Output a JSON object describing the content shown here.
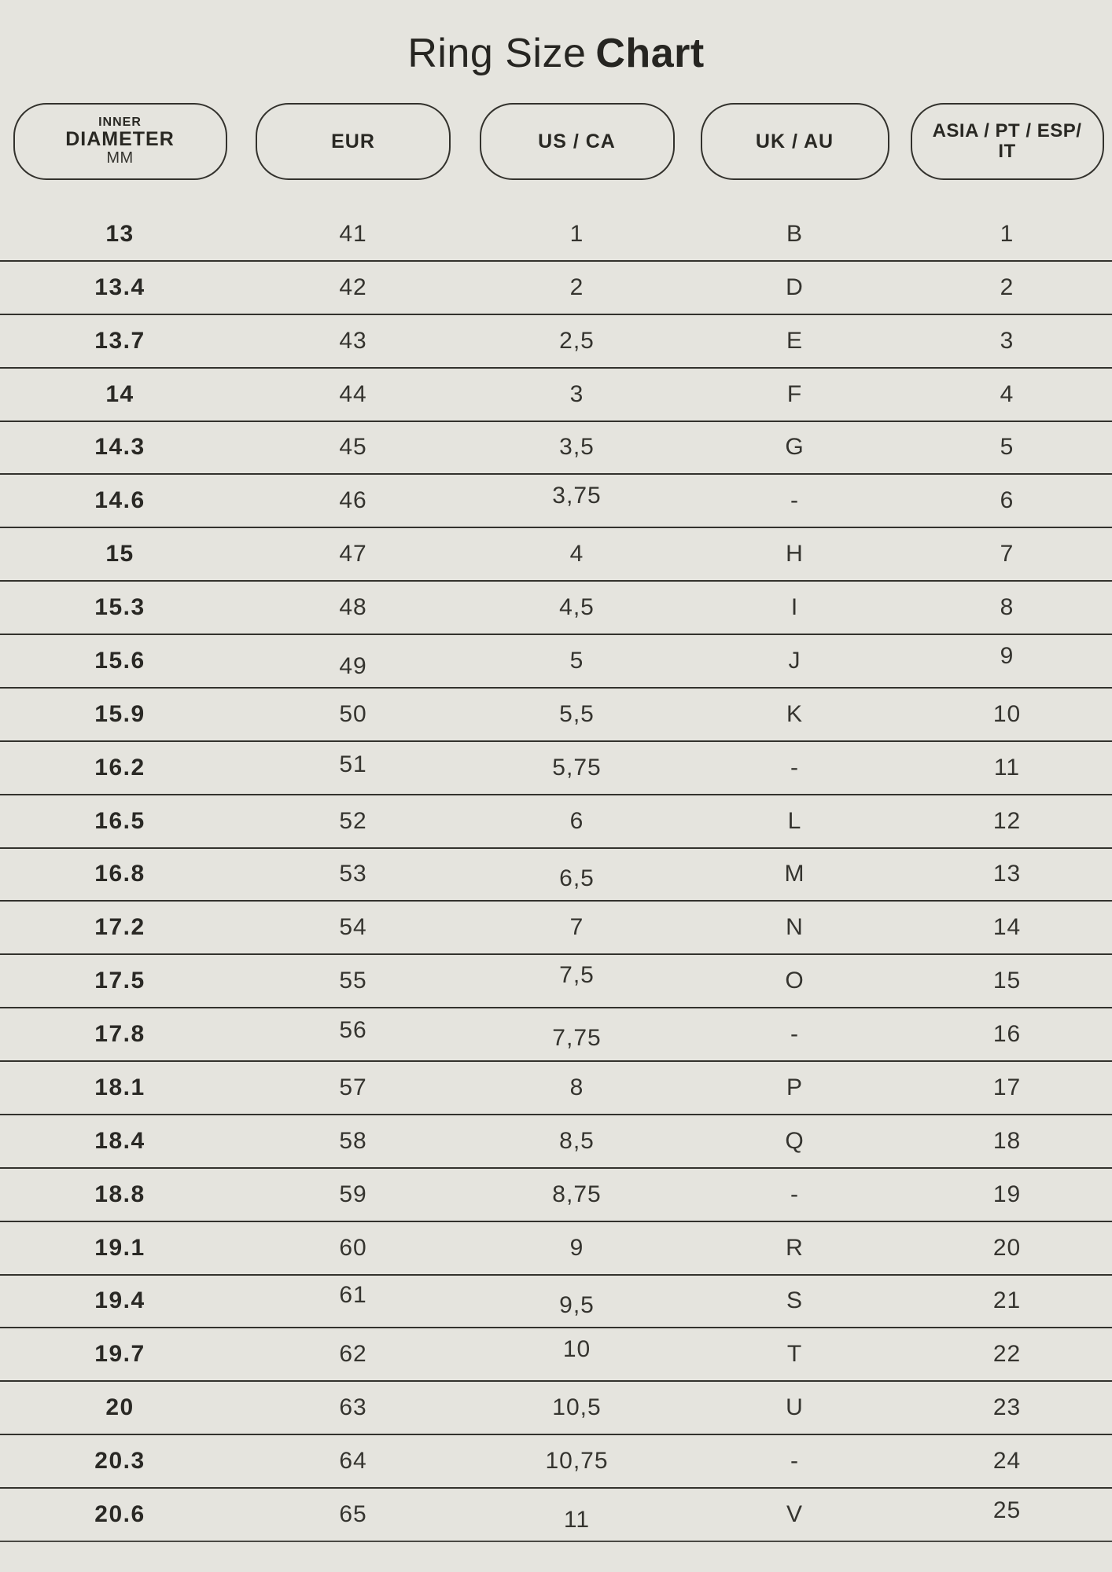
{
  "title": {
    "regular": "Ring Size",
    "bold": "Chart"
  },
  "colors": {
    "background": "#e5e4de",
    "ink": "#2b2a26",
    "line": "#33322d"
  },
  "header": {
    "columns": [
      {
        "id": "inner-diameter",
        "top": "INNER",
        "main": "DIAMETER",
        "sub": "MM"
      },
      {
        "id": "eur",
        "label": "EUR"
      },
      {
        "id": "us-ca",
        "label": "US / CA"
      },
      {
        "id": "uk-au",
        "label": "UK / AU"
      },
      {
        "id": "asia-pt-esp-it",
        "label": "ASIA / PT / ESP/",
        "label2": "IT"
      }
    ]
  },
  "chart_data": {
    "type": "table",
    "title": "Ring Size Chart",
    "columns": [
      "INNER DIAMETER MM",
      "EUR",
      "US / CA",
      "UK / AU",
      "ASIA / PT / ESP/ IT"
    ],
    "rows": [
      [
        "13",
        "41",
        "1",
        "B",
        "1"
      ],
      [
        "13.4",
        "42",
        "2",
        "D",
        "2"
      ],
      [
        "13.7",
        "43",
        "2,5",
        "E",
        "3"
      ],
      [
        "14",
        "44",
        "3",
        "F",
        "4"
      ],
      [
        "14.3",
        "45",
        "3,5",
        "G",
        "5"
      ],
      [
        "14.6",
        "46",
        "3,75",
        "-",
        "6"
      ],
      [
        "15",
        "47",
        "4",
        "H",
        "7"
      ],
      [
        "15.3",
        "48",
        "4,5",
        "I",
        "8"
      ],
      [
        "15.6",
        "49",
        "5",
        "J",
        "9"
      ],
      [
        "15.9",
        "50",
        "5,5",
        "K",
        "10"
      ],
      [
        "16.2",
        "51",
        "5,75",
        "-",
        "11"
      ],
      [
        "16.5",
        "52",
        "6",
        "L",
        "12"
      ],
      [
        "16.8",
        "53",
        "6,5",
        "M",
        "13"
      ],
      [
        "17.2",
        "54",
        "7",
        "N",
        "14"
      ],
      [
        "17.5",
        "55",
        "7,5",
        "O",
        "15"
      ],
      [
        "17.8",
        "56",
        "7,75",
        "-",
        "16"
      ],
      [
        "18.1",
        "57",
        "8",
        "P",
        "17"
      ],
      [
        "18.4",
        "58",
        "8,5",
        "Q",
        "18"
      ],
      [
        "18.8",
        "59",
        "8,75",
        "-",
        "19"
      ],
      [
        "19.1",
        "60",
        "9",
        "R",
        "20"
      ],
      [
        "19.4",
        "61",
        "9,5",
        "S",
        "21"
      ],
      [
        "19.7",
        "62",
        "10",
        "T",
        "22"
      ],
      [
        "20",
        "63",
        "10,5",
        "U",
        "23"
      ],
      [
        "20.3",
        "64",
        "10,75",
        "-",
        "24"
      ],
      [
        "20.6",
        "65",
        "11",
        "V",
        "25"
      ]
    ]
  }
}
